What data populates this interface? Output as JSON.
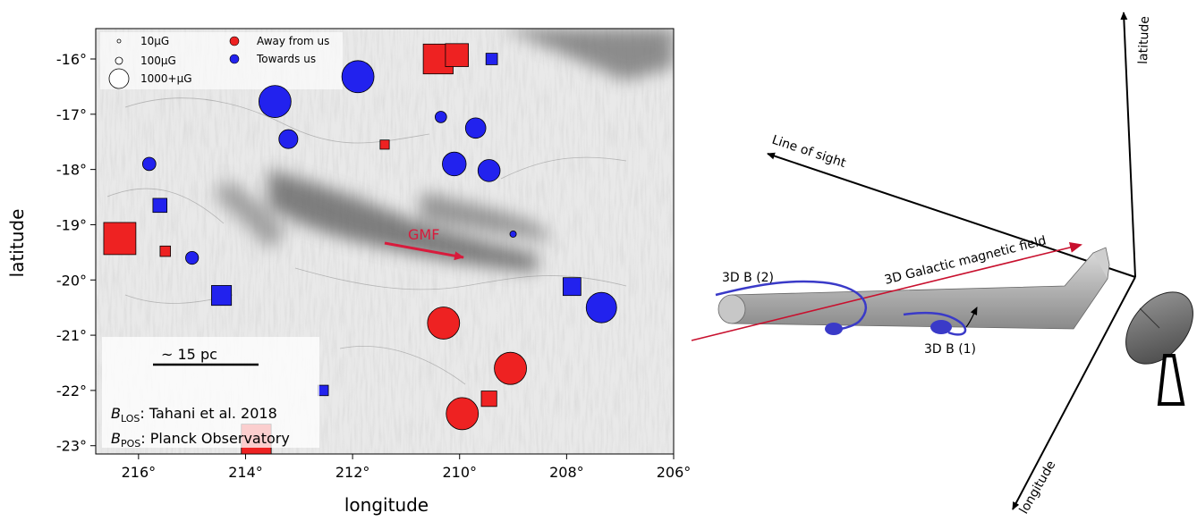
{
  "chart_data": [
    {
      "type": "scatter",
      "xlabel": "longitude",
      "ylabel": "latitude",
      "xlim": [
        216.8,
        206.0
      ],
      "ylim": [
        -23.15,
        -15.45
      ],
      "x_ticks": [
        216,
        214,
        212,
        210,
        208,
        206
      ],
      "x_tick_labels": [
        "216°",
        "214°",
        "212°",
        "210°",
        "208°",
        "206°"
      ],
      "y_ticks": [
        -16,
        -17,
        -18,
        -19,
        -20,
        -21,
        -22,
        -23
      ],
      "y_tick_labels": [
        "-16°",
        "-17°",
        "-18°",
        "-19°",
        "-20°",
        "-21°",
        "-22°",
        "-23°"
      ],
      "legend_size": [
        {
          "label": "10μG",
          "value": 10
        },
        {
          "label": "100μG",
          "value": 100
        },
        {
          "label": "1000+μG",
          "value": 1000
        }
      ],
      "legend_direction": [
        {
          "label": "Away from us",
          "color": "#ee2222"
        },
        {
          "label": "Towards us",
          "color": "#2222ee"
        }
      ],
      "annotations": {
        "scale_bar": "~ 15 pc",
        "gmf_label": "GMF",
        "blos_prefix": "B",
        "blos_sub": "LOS",
        "blos_text": ": Tahani et al. 2018",
        "bpos_prefix": "B",
        "bpos_sub": "POS",
        "bpos_text": ": Planck Observatory"
      },
      "series": [
        {
          "name": "Towards us",
          "color": "#2222ee",
          "marker": "circle",
          "points": [
            {
              "lon": 211.9,
              "lat": -16.32,
              "b": 520
            },
            {
              "lon": 213.45,
              "lat": -16.77,
              "b": 520
            },
            {
              "lon": 213.2,
              "lat": -17.45,
              "b": 150
            },
            {
              "lon": 210.35,
              "lat": -17.05,
              "b": 40
            },
            {
              "lon": 209.7,
              "lat": -17.25,
              "b": 180
            },
            {
              "lon": 210.1,
              "lat": -17.9,
              "b": 260
            },
            {
              "lon": 209.45,
              "lat": -18.02,
              "b": 220
            },
            {
              "lon": 215.8,
              "lat": -17.9,
              "b": 60
            },
            {
              "lon": 215.0,
              "lat": -19.6,
              "b": 55
            },
            {
              "lon": 207.35,
              "lat": -20.5,
              "b": 460
            },
            {
              "lon": 209.0,
              "lat": -19.17,
              "b": 5
            }
          ]
        },
        {
          "name": "Towards us",
          "color": "#2222ee",
          "marker": "square",
          "points": [
            {
              "lon": 209.4,
              "lat": -16.0,
              "b": 40
            },
            {
              "lon": 215.6,
              "lat": -18.65,
              "b": 70
            },
            {
              "lon": 214.45,
              "lat": -20.28,
              "b": 170
            },
            {
              "lon": 207.9,
              "lat": -20.12,
              "b": 130
            },
            {
              "lon": 212.55,
              "lat": -22.0,
              "b": 30
            }
          ]
        },
        {
          "name": "Away from us",
          "color": "#ee2222",
          "marker": "circle",
          "points": [
            {
              "lon": 210.3,
              "lat": -20.78,
              "b": 520
            },
            {
              "lon": 209.05,
              "lat": -21.6,
              "b": 560
            },
            {
              "lon": 209.95,
              "lat": -22.42,
              "b": 520
            }
          ]
        },
        {
          "name": "Away from us",
          "color": "#ee2222",
          "marker": "square",
          "points": [
            {
              "lon": 210.4,
              "lat": -16.0,
              "b": 440
            },
            {
              "lon": 210.05,
              "lat": -15.93,
              "b": 240
            },
            {
              "lon": 216.35,
              "lat": -19.25,
              "b": 520
            },
            {
              "lon": 211.4,
              "lat": -17.55,
              "b": 20
            },
            {
              "lon": 215.5,
              "lat": -19.48,
              "b": 30
            },
            {
              "lon": 209.45,
              "lat": -22.15,
              "b": 90
            },
            {
              "lon": 213.8,
              "lat": -22.88,
              "b": 440
            }
          ]
        }
      ]
    },
    {
      "type": "diagram",
      "axes": {
        "latitude": "latitude",
        "line_of_sight": "Line of sight",
        "longitude": "longitude"
      },
      "labels": {
        "galactic_field": "3D Galactic magnetic field",
        "b2": "3D B (2)",
        "b1": "3D B (1)"
      }
    }
  ]
}
